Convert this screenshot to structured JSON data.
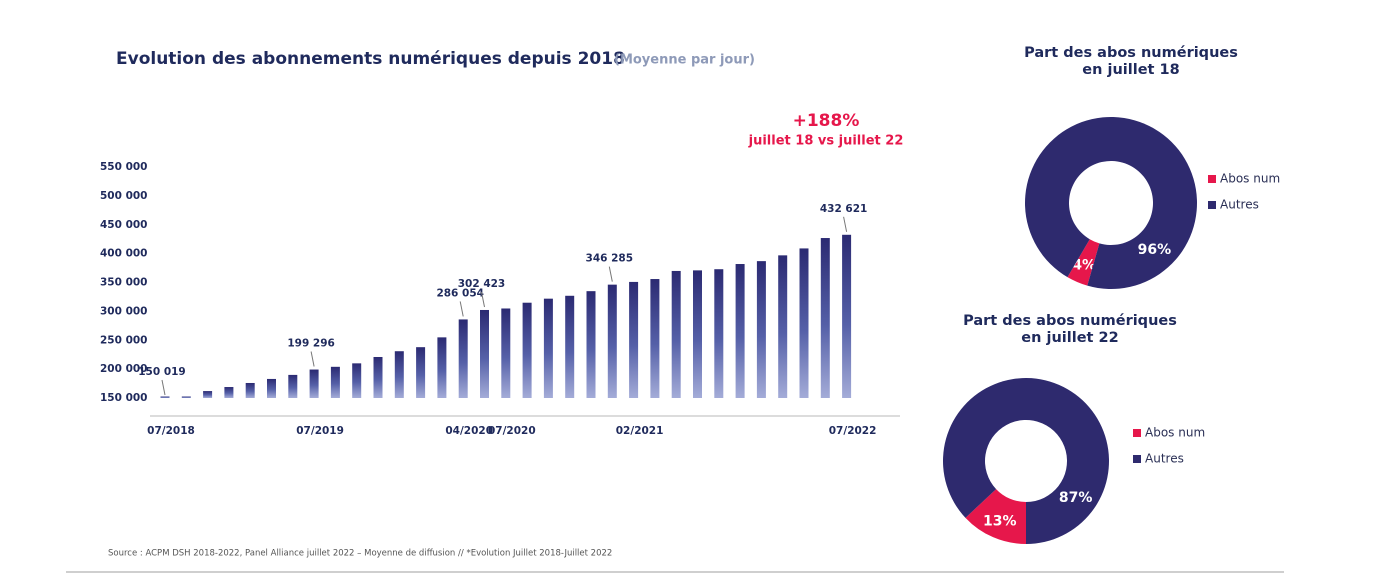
{
  "chart_data": [
    {
      "type": "bar",
      "title": "Evolution des abonnements numériques depuis 2018",
      "subtitle": "(Moyenne par jour)",
      "annotations": [
        "+188%",
        "juillet 18 vs juillet 22"
      ],
      "categories": [
        "07/2018",
        null,
        null,
        null,
        null,
        null,
        null,
        "07/2019",
        null,
        null,
        null,
        null,
        null,
        null,
        "04/2020",
        null,
        "07/2020",
        null,
        null,
        null,
        null,
        null,
        "02/2021",
        null,
        null,
        null,
        null,
        null,
        null,
        null,
        null,
        null,
        "07/2022"
      ],
      "values": [
        150019,
        150500,
        162000,
        169000,
        176000,
        183000,
        190000,
        199296,
        204000,
        210000,
        221000,
        231000,
        238000,
        255000,
        286054,
        302423,
        305000,
        315000,
        322000,
        327000,
        335000,
        346285,
        351000,
        356000,
        370000,
        371000,
        373000,
        382000,
        387000,
        397000,
        409000,
        427000,
        432621
      ],
      "value_labels": [
        "150 019",
        null,
        null,
        null,
        null,
        null,
        null,
        "199 296",
        null,
        null,
        null,
        null,
        null,
        null,
        "286 054",
        "302 423",
        null,
        null,
        null,
        null,
        null,
        "346 285",
        null,
        null,
        null,
        null,
        null,
        null,
        null,
        null,
        null,
        null,
        "432 621"
      ],
      "color": "#2b2a72",
      "ylim": [
        150000,
        550000
      ],
      "yticks": [
        {
          "value": 150000,
          "label": "150 000"
        },
        {
          "value": 200000,
          "label": "200 000"
        },
        {
          "value": 250000,
          "label": "250 000"
        },
        {
          "value": 300000,
          "label": "300 000"
        },
        {
          "value": 350000,
          "label": "350 000"
        },
        {
          "value": 400000,
          "label": "400 000"
        },
        {
          "value": 450000,
          "label": "450 000"
        },
        {
          "value": 500000,
          "label": "500 000"
        },
        {
          "value": 550000,
          "label": "550 000"
        }
      ],
      "source": "Source : ACPM DSH 2018-2022, Panel Alliance juillet 2022 – Moyenne de diffusion // *Evolution Juillet 2018-Juillet 2022"
    },
    {
      "type": "donut",
      "title": [
        "Part des abos numériques",
        "en juillet 18"
      ],
      "categories": [
        "Abos num",
        "Autres"
      ],
      "values": [
        4,
        96
      ],
      "value_labels": [
        "4%",
        "96%"
      ],
      "colors": [
        "#e6174b",
        "#2e2a6e"
      ]
    },
    {
      "type": "donut",
      "title": [
        "Part des abos numériques",
        "en juillet 22"
      ],
      "categories": [
        "Abos num",
        "Autres"
      ],
      "values": [
        13,
        87
      ],
      "value_labels": [
        "13%",
        "87%"
      ],
      "colors": [
        "#e6174b",
        "#2e2a6e"
      ]
    }
  ]
}
